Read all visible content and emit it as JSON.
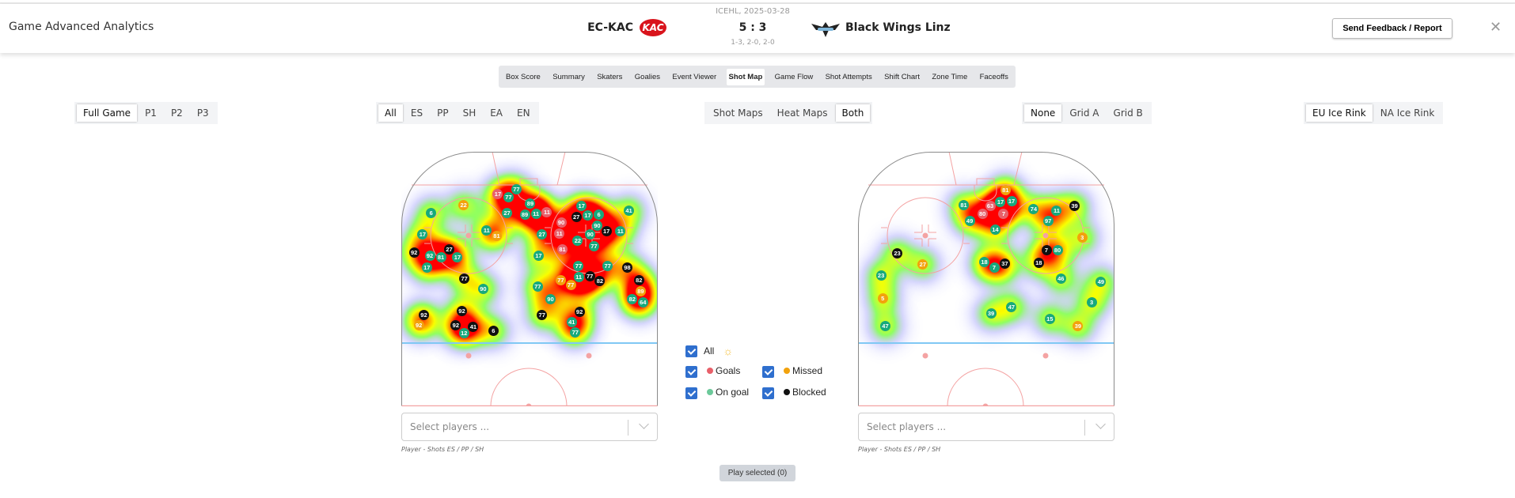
{
  "header": {
    "app_title": "Game Advanced Analytics",
    "league_date": "ICEHL, 2025-03-28",
    "home_team": "EC-KAC",
    "home_logo_text": "KAC",
    "score": "5 : 3",
    "period_scores": "1-3, 2-0, 2-0",
    "away_team": "Black Wings Linz",
    "feedback_label": "Send Feedback / Report",
    "close_label": "✕"
  },
  "tabs": [
    {
      "label": "Box Score"
    },
    {
      "label": "Summary"
    },
    {
      "label": "Skaters"
    },
    {
      "label": "Goalies"
    },
    {
      "label": "Event Viewer"
    },
    {
      "label": "Shot Map",
      "active": true
    },
    {
      "label": "Game Flow"
    },
    {
      "label": "Shot Attempts"
    },
    {
      "label": "Shift Chart"
    },
    {
      "label": "Zone Time"
    },
    {
      "label": "Faceoffs"
    }
  ],
  "filters": {
    "period": {
      "options": [
        "Full Game",
        "P1",
        "P2",
        "P3"
      ],
      "selected": "Full Game"
    },
    "strength": {
      "options": [
        "All",
        "ES",
        "PP",
        "SH",
        "EA",
        "EN"
      ],
      "selected": "All"
    },
    "map_type": {
      "options": [
        "Shot Maps",
        "Heat Maps",
        "Both"
      ],
      "selected": "Both"
    },
    "grid": {
      "options": [
        "None",
        "Grid A",
        "Grid B"
      ],
      "selected": "None"
    },
    "rink": {
      "options": [
        "EU Ice Rink",
        "NA Ice Rink"
      ],
      "selected": "EU Ice Rink"
    }
  },
  "colors": {
    "goal": "#e8606a",
    "missed": "#f2a20c",
    "on_goal": "#17a97c",
    "blocked": "#111111",
    "checkbox": "#2f6fce",
    "blue_line": "#80c8f4",
    "rink_line": "#f4a3a3"
  },
  "legend": {
    "all": {
      "label": "All",
      "checked": true,
      "icon": "sun-icon"
    },
    "goals": {
      "label": "Goals",
      "checked": true
    },
    "missed": {
      "label": "Missed",
      "checked": true
    },
    "on_goal": {
      "label": "On goal",
      "checked": true
    },
    "blocked": {
      "label": "Blocked",
      "checked": true
    }
  },
  "left_panel": {
    "select_placeholder": "Select players ...",
    "caption": "Player - Shots ES / PP / SH",
    "shots_units": "meters from left boards (x) / end boards (y)",
    "shots": [
      {
        "n": "17",
        "t": "goal",
        "x": 11.5,
        "y": 5.0
      },
      {
        "n": "77",
        "t": "on_goal",
        "x": 12.5,
        "y": 5.2
      },
      {
        "n": "77",
        "t": "on_goal",
        "x": 13.4,
        "y": 4.5
      },
      {
        "n": "22",
        "t": "missed",
        "x": 7.3,
        "y": 6.3
      },
      {
        "n": "6",
        "t": "on_goal",
        "x": 3.5,
        "y": 7.2
      },
      {
        "n": "27",
        "t": "on_goal",
        "x": 12.4,
        "y": 7.2
      },
      {
        "n": "11",
        "t": "goal",
        "x": 16.3,
        "y": 7.0
      },
      {
        "n": "89",
        "t": "on_goal",
        "x": 15.4,
        "y": 6.5
      },
      {
        "n": "11",
        "t": "on_goal",
        "x": 15.9,
        "y": 7.0
      },
      {
        "n": "89",
        "t": "on_goal",
        "x": 14.9,
        "y": 7.3
      },
      {
        "n": "17",
        "t": "on_goal",
        "x": 2.5,
        "y": 9.7
      },
      {
        "n": "11",
        "t": "on_goal",
        "x": 10.1,
        "y": 9.3
      },
      {
        "n": "81",
        "t": "missed",
        "x": 11.1,
        "y": 9.8
      },
      {
        "n": "27",
        "t": "on_goal",
        "x": 16.5,
        "y": 9.7
      },
      {
        "n": "90",
        "t": "goal",
        "x": 18.7,
        "y": 8.7
      },
      {
        "n": "11",
        "t": "goal",
        "x": 18.6,
        "y": 9.3
      },
      {
        "n": "81",
        "t": "goal",
        "x": 18.9,
        "y": 11.5
      },
      {
        "n": "27",
        "t": "blocked",
        "x": 20.7,
        "y": 7.5
      },
      {
        "n": "17",
        "t": "on_goal",
        "x": 21.2,
        "y": 6.8
      },
      {
        "n": "17",
        "t": "on_goal",
        "x": 21.7,
        "y": 7.2
      },
      {
        "n": "6",
        "t": "on_goal",
        "x": 23.1,
        "y": 7.4
      },
      {
        "n": "41",
        "t": "on_goal",
        "x": 26.7,
        "y": 6.9
      },
      {
        "n": "90",
        "t": "on_goal",
        "x": 22.9,
        "y": 8.8
      },
      {
        "n": "90",
        "t": "on_goal",
        "x": 22.3,
        "y": 9.5
      },
      {
        "n": "17",
        "t": "blocked",
        "x": 24.0,
        "y": 9.3
      },
      {
        "n": "11",
        "t": "on_goal",
        "x": 25.7,
        "y": 9.3
      },
      {
        "n": "22",
        "t": "on_goal",
        "x": 20.7,
        "y": 10.4
      },
      {
        "n": "77",
        "t": "on_goal",
        "x": 22.6,
        "y": 11.1
      },
      {
        "n": "92",
        "t": "blocked",
        "x": 1.5,
        "y": 11.8
      },
      {
        "n": "27",
        "t": "blocked",
        "x": 5.5,
        "y": 11.7
      },
      {
        "n": "92",
        "t": "on_goal",
        "x": 3.5,
        "y": 12.2
      },
      {
        "n": "81",
        "t": "on_goal",
        "x": 4.7,
        "y": 12.2
      },
      {
        "n": "17",
        "t": "on_goal",
        "x": 6.5,
        "y": 12.3
      },
      {
        "n": "17",
        "t": "on_goal",
        "x": 3.0,
        "y": 13.6
      },
      {
        "n": "17",
        "t": "on_goal",
        "x": 16.1,
        "y": 12.2
      },
      {
        "n": "77",
        "t": "on_goal",
        "x": 24.2,
        "y": 13.4
      },
      {
        "n": "98",
        "t": "blocked",
        "x": 26.5,
        "y": 13.6
      },
      {
        "n": "77",
        "t": "on_goal",
        "x": 20.8,
        "y": 13.6
      },
      {
        "n": "77",
        "t": "blocked",
        "x": 7.4,
        "y": 14.9
      },
      {
        "n": "90",
        "t": "on_goal",
        "x": 9.6,
        "y": 16.1
      },
      {
        "n": "77",
        "t": "missed",
        "x": 18.8,
        "y": 15.1
      },
      {
        "n": "77",
        "t": "missed",
        "x": 20.4,
        "y": 15.2
      },
      {
        "n": "77",
        "t": "blocked",
        "x": 21.7,
        "y": 14.8
      },
      {
        "n": "11",
        "t": "on_goal",
        "x": 21.1,
        "y": 14.9
      },
      {
        "n": "82",
        "t": "blocked",
        "x": 22.8,
        "y": 15.0
      },
      {
        "n": "82",
        "t": "blocked",
        "x": 27.9,
        "y": 15.2
      },
      {
        "n": "89",
        "t": "missed",
        "x": 28.0,
        "y": 16.3
      },
      {
        "n": "82",
        "t": "on_goal",
        "x": 27.4,
        "y": 17.3
      },
      {
        "n": "64",
        "t": "on_goal",
        "x": 28.1,
        "y": 17.6
      },
      {
        "n": "77",
        "t": "on_goal",
        "x": 16.0,
        "y": 15.8
      },
      {
        "n": "90",
        "t": "on_goal",
        "x": 17.5,
        "y": 17.3
      },
      {
        "n": "77",
        "t": "blocked",
        "x": 16.5,
        "y": 19.2
      },
      {
        "n": "92",
        "t": "blocked",
        "x": 20.9,
        "y": 18.8
      },
      {
        "n": "77",
        "t": "on_goal",
        "x": 20.3,
        "y": 20.9
      },
      {
        "n": "41",
        "t": "on_goal",
        "x": 20.1,
        "y": 20.3
      },
      {
        "n": "92",
        "t": "blocked",
        "x": 7.1,
        "y": 18.7
      },
      {
        "n": "92",
        "t": "missed",
        "x": 2.2,
        "y": 20.1
      },
      {
        "n": "92",
        "t": "blocked",
        "x": 2.5,
        "y": 19.5
      },
      {
        "n": "92",
        "t": "blocked",
        "x": 6.6,
        "y": 20.6
      },
      {
        "n": "41",
        "t": "blocked",
        "x": 8.4,
        "y": 20.6
      },
      {
        "n": "12",
        "t": "on_goal",
        "x": 7.2,
        "y": 21.1
      },
      {
        "n": "6",
        "t": "blocked",
        "x": 10.8,
        "y": 21.0
      }
    ]
  },
  "right_panel": {
    "select_placeholder": "Select players ...",
    "caption": "Player - Shots ES / PP / SH",
    "shots_units": "meters from left boards (x) / end boards (y)",
    "shots": [
      {
        "n": "81",
        "t": "missed",
        "x": 17.3,
        "y": 4.5
      },
      {
        "n": "63",
        "t": "goal",
        "x": 15.9,
        "y": 6.4
      },
      {
        "n": "7",
        "t": "goal",
        "x": 17.0,
        "y": 6.9
      },
      {
        "n": "80",
        "t": "goal",
        "x": 14.8,
        "y": 7.1
      },
      {
        "n": "17",
        "t": "on_goal",
        "x": 16.8,
        "y": 6.3
      },
      {
        "n": "17",
        "t": "on_goal",
        "x": 17.4,
        "y": 5.9
      },
      {
        "n": "81",
        "t": "on_goal",
        "x": 12.4,
        "y": 6.3
      },
      {
        "n": "49",
        "t": "on_goal",
        "x": 13.1,
        "y": 8.1
      },
      {
        "n": "14",
        "t": "on_goal",
        "x": 16.1,
        "y": 9.1
      },
      {
        "n": "74",
        "t": "on_goal",
        "x": 20.6,
        "y": 6.7
      },
      {
        "n": "11",
        "t": "on_goal",
        "x": 23.3,
        "y": 6.9
      },
      {
        "n": "39",
        "t": "blocked",
        "x": 25.4,
        "y": 6.4
      },
      {
        "n": "97",
        "t": "on_goal",
        "x": 22.3,
        "y": 8.1
      },
      {
        "n": "3",
        "t": "missed",
        "x": 26.3,
        "y": 10.1
      },
      {
        "n": "7",
        "t": "blocked",
        "x": 22.1,
        "y": 11.6
      },
      {
        "n": "80",
        "t": "on_goal",
        "x": 23.4,
        "y": 11.6
      },
      {
        "n": "18",
        "t": "blocked",
        "x": 21.2,
        "y": 13.0
      },
      {
        "n": "23",
        "t": "blocked",
        "x": 4.6,
        "y": 11.9
      },
      {
        "n": "27",
        "t": "missed",
        "x": 7.6,
        "y": 13.2
      },
      {
        "n": "18",
        "t": "on_goal",
        "x": 14.9,
        "y": 13.0
      },
      {
        "n": "7",
        "t": "on_goal",
        "x": 16.0,
        "y": 13.5
      },
      {
        "n": "37",
        "t": "blocked",
        "x": 17.1,
        "y": 13.2
      },
      {
        "n": "23",
        "t": "on_goal",
        "x": 2.7,
        "y": 14.5
      },
      {
        "n": "46",
        "t": "on_goal",
        "x": 23.8,
        "y": 14.9
      },
      {
        "n": "49",
        "t": "on_goal",
        "x": 28.5,
        "y": 15.3
      },
      {
        "n": "5",
        "t": "missed",
        "x": 2.9,
        "y": 17.2
      },
      {
        "n": "3",
        "t": "on_goal",
        "x": 27.4,
        "y": 17.7
      },
      {
        "n": "47",
        "t": "on_goal",
        "x": 18.0,
        "y": 18.2
      },
      {
        "n": "39",
        "t": "on_goal",
        "x": 15.6,
        "y": 19.0
      },
      {
        "n": "15",
        "t": "on_goal",
        "x": 22.5,
        "y": 19.6
      },
      {
        "n": "39",
        "t": "missed",
        "x": 25.8,
        "y": 20.5
      },
      {
        "n": "47",
        "t": "on_goal",
        "x": 3.2,
        "y": 20.5
      }
    ]
  },
  "play_button": "Play selected (0)"
}
